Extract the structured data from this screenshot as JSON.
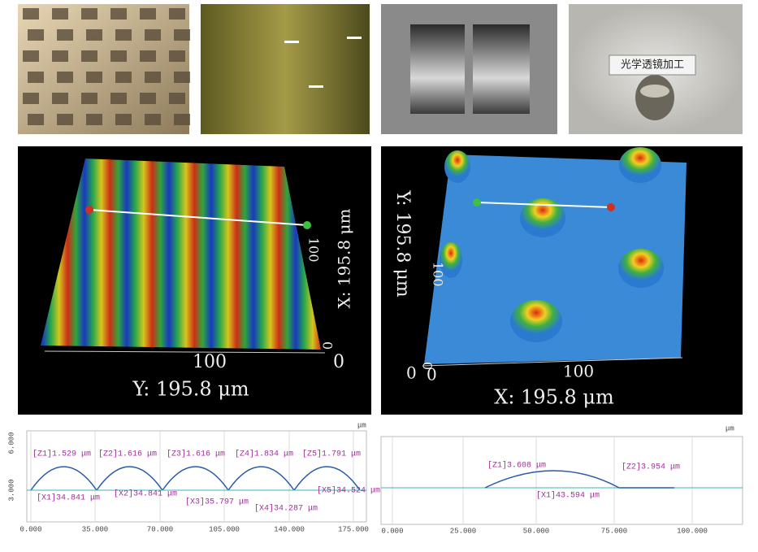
{
  "photos": {
    "lens_label": "光学透镜加工"
  },
  "surface_left": {
    "x_axis": "X: 195.8 μm",
    "y_axis": "Y: 195.8 μm",
    "x_tick_mid": "100",
    "x_tick_end": "0",
    "y_tick_mid": "100",
    "y_tick_end": "0"
  },
  "surface_right": {
    "x_axis": "X: 195.8 μm",
    "y_axis": "Y: 195.8 μm",
    "x_ticks": [
      "0",
      "100"
    ],
    "y_ticks": [
      "100",
      "0"
    ],
    "z_tick": "0"
  },
  "profile_left": {
    "unit": "μm",
    "yticks": [
      "6.000",
      "3.000"
    ],
    "xticks": [
      "0.000",
      "35.000",
      "70.000",
      "105.000",
      "140.000",
      "175.000"
    ],
    "heights": [
      "[Z1]1.529 μm",
      "[Z2]1.616 μm",
      "[Z3]1.616 μm",
      "[Z4]1.834 μm",
      "[Z5]1.791 μm"
    ],
    "pitches": [
      "[X1]34.841 μm",
      "[X2]34.841 μm",
      "[X3]35.797 μm",
      "[X4]34.287 μm",
      "[X5]34.524 μm"
    ]
  },
  "profile_right": {
    "unit": "μm",
    "xticks": [
      "0.000",
      "25.000",
      "50.000",
      "75.000",
      "100.000"
    ],
    "heights": [
      "[Z1]3.608 μm",
      "[Z2]3.954 μm"
    ],
    "pitches": [
      "[X1]43.594 μm"
    ]
  }
}
